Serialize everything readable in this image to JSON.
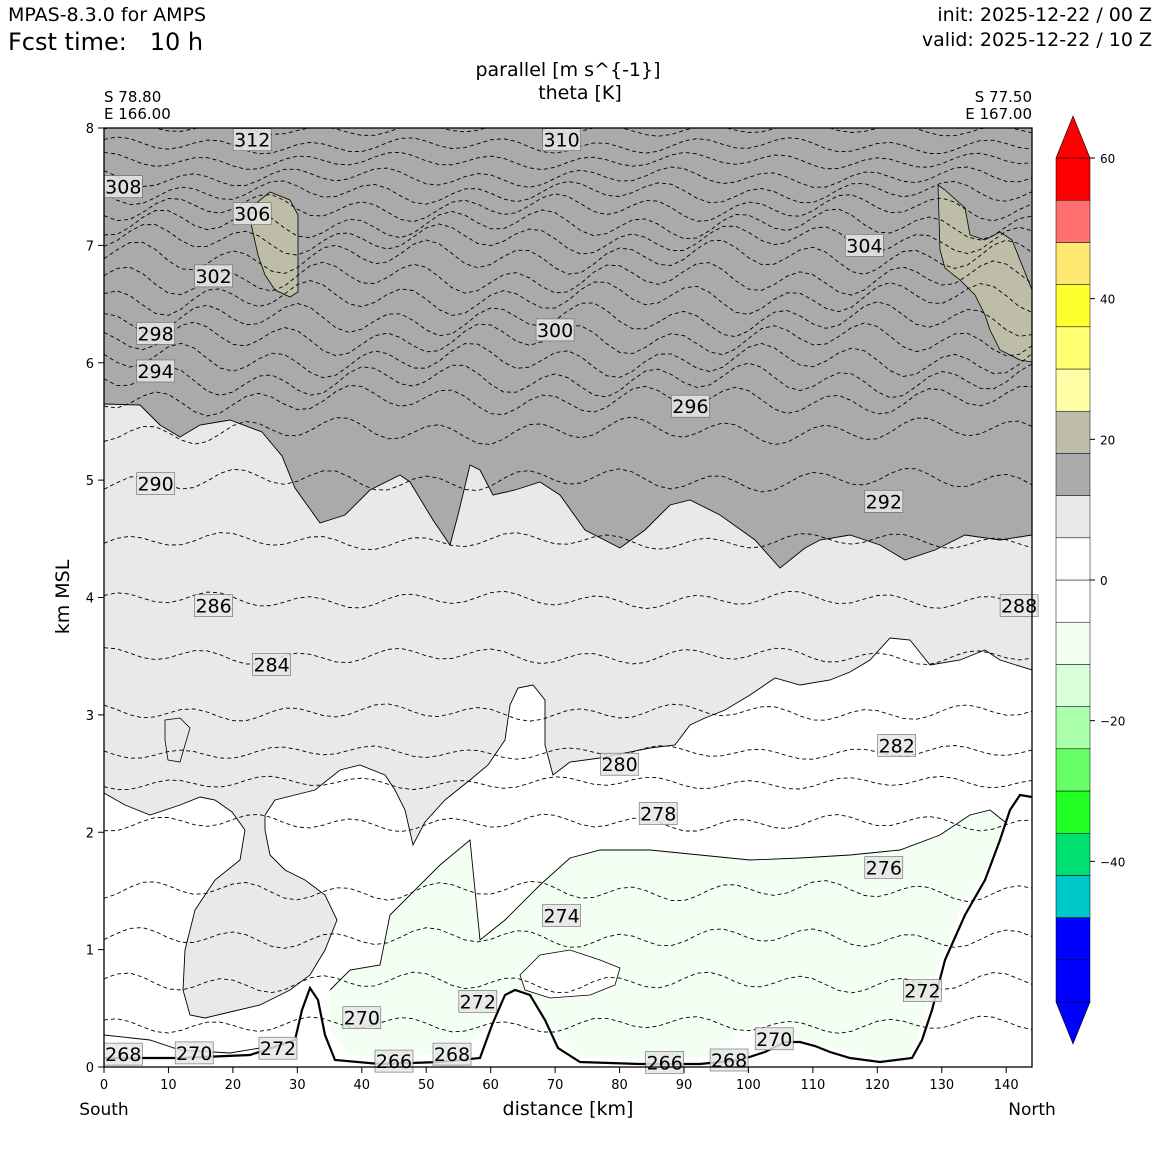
{
  "header": {
    "model": "MPAS-8.3.0 for AMPS",
    "fcst_time": "Fcst time:   10 h",
    "init": "init: 2025-12-22 / 00 Z",
    "valid": "valid: 2025-12-22 / 10 Z"
  },
  "chart_data": {
    "type": "cross-section contour",
    "title_line1": "parallel [m s^{-1}]",
    "title_line2": "theta [K]",
    "xlabel": "distance [km]",
    "ylabel": "km MSL",
    "xlim": [
      0,
      144
    ],
    "ylim": [
      0,
      8
    ],
    "x_ticks": [
      0,
      10,
      20,
      30,
      40,
      50,
      60,
      70,
      80,
      90,
      100,
      110,
      120,
      130,
      140
    ],
    "y_ticks": [
      0,
      1,
      2,
      3,
      4,
      5,
      6,
      7,
      8
    ],
    "left_end": {
      "lat": "S 78.80",
      "lon": "E 166.00",
      "direction": "South"
    },
    "right_end": {
      "lat": "S 77.50",
      "lon": "E 167.00",
      "direction": "North"
    },
    "colorbar": {
      "levels": [
        -60,
        -55,
        -50,
        -45,
        -40,
        -35,
        -30,
        -25,
        -20,
        -15,
        -10,
        -5,
        0,
        5,
        10,
        15,
        20,
        25,
        30,
        35,
        40,
        45,
        50,
        55,
        60
      ],
      "colors": [
        "#0000ff",
        "#0000ff",
        "#00c8c8",
        "#00e070",
        "#22ff22",
        "#66ff66",
        "#aaffaa",
        "#d8ffd8",
        "#f2fff2",
        "#ffffff",
        "#ffffff",
        "#e9e9e9",
        "#aaaaaa",
        "#bebea8",
        "#ffffa8",
        "#ffff70",
        "#ffff30",
        "#ffe870",
        "#ff7070",
        "#ff0000"
      ],
      "extend_low_color": "#0000ff",
      "extend_high_color": "#ff0000",
      "tick_labels": [
        "60",
        "40",
        "20",
        "0",
        "−20",
        "−40"
      ],
      "tick_values": [
        60,
        40,
        20,
        0,
        -20,
        -40
      ]
    },
    "theta_contours_K": [
      266,
      268,
      270,
      272,
      274,
      276,
      278,
      280,
      282,
      284,
      286,
      288,
      290,
      292,
      294,
      296,
      298,
      300,
      302,
      304,
      306,
      308,
      310,
      312
    ],
    "contour_labels": [
      {
        "text": "312",
        "x": 23,
        "y": 7.9
      },
      {
        "text": "310",
        "x": 71,
        "y": 7.9
      },
      {
        "text": "308",
        "x": 3,
        "y": 7.5
      },
      {
        "text": "306",
        "x": 23,
        "y": 7.27
      },
      {
        "text": "304",
        "x": 118,
        "y": 7.0
      },
      {
        "text": "302",
        "x": 17,
        "y": 6.74
      },
      {
        "text": "300",
        "x": 70,
        "y": 6.28
      },
      {
        "text": "298",
        "x": 8,
        "y": 6.25
      },
      {
        "text": "296",
        "x": 91,
        "y": 5.63
      },
      {
        "text": "294",
        "x": 8,
        "y": 5.93
      },
      {
        "text": "292",
        "x": 121,
        "y": 4.82
      },
      {
        "text": "290",
        "x": 8,
        "y": 4.97
      },
      {
        "text": "288",
        "x": 142,
        "y": 3.93
      },
      {
        "text": "286",
        "x": 17,
        "y": 3.93
      },
      {
        "text": "284",
        "x": 26,
        "y": 3.43
      },
      {
        "text": "282",
        "x": 123,
        "y": 2.74
      },
      {
        "text": "280",
        "x": 80,
        "y": 2.58
      },
      {
        "text": "278",
        "x": 86,
        "y": 2.16
      },
      {
        "text": "276",
        "x": 121,
        "y": 1.7
      },
      {
        "text": "274",
        "x": 71,
        "y": 1.29
      },
      {
        "text": "272",
        "x": 58,
        "y": 0.56
      },
      {
        "text": "272",
        "x": 127,
        "y": 0.65
      },
      {
        "text": "272",
        "x": 27,
        "y": 0.16
      },
      {
        "text": "270",
        "x": 40,
        "y": 0.42
      },
      {
        "text": "270",
        "x": 104,
        "y": 0.24
      },
      {
        "text": "270",
        "x": 14,
        "y": 0.12
      },
      {
        "text": "268",
        "x": 3,
        "y": 0.11
      },
      {
        "text": "268",
        "x": 54,
        "y": 0.11
      },
      {
        "text": "268",
        "x": 97,
        "y": 0.06
      },
      {
        "text": "266",
        "x": 45,
        "y": 0.05
      },
      {
        "text": "266",
        "x": 87,
        "y": 0.04
      }
    ]
  }
}
